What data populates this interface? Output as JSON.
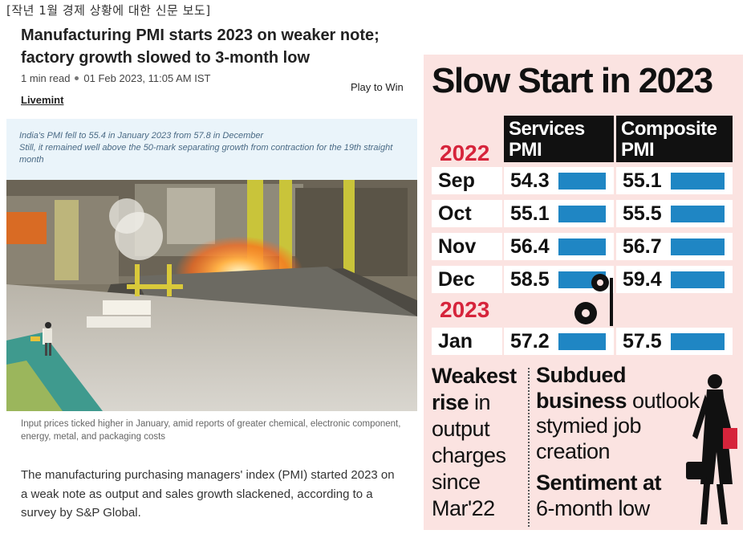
{
  "top_caption": "[작년 1월 경제 상황에 대한 신문 보도]",
  "article": {
    "headline": "Manufacturing PMI starts 2023 on weaker note; factory growth slowed to 3-month low",
    "read_time": "1 min read",
    "datetime": "01 Feb 2023, 11:05 AM IST",
    "play_label": "Play to Win",
    "source": "Livemint",
    "summary_1": "India's PMI fell to 55.4 in January 2023 from 57.8 in December",
    "summary_2": "Still, it remained well above the 50-mark separating growth from contraction for the 19th straight month",
    "photo_caption": "Input prices ticked higher in January, amid reports of greater chemical, electronic component, energy, metal, and packaging costs",
    "body": "The manufacturing purchasing managers' index (PMI) started 2023 on a weak note as output and sales growth slackened, according to a survey by S&P Global."
  },
  "infographic": {
    "title": "Slow Start in 2023",
    "col_services": "Services PMI",
    "col_composite": "Composite PMI",
    "year_2022": "2022",
    "year_2023": "2023",
    "bar_color": "#1f86c4",
    "rows": [
      {
        "month": "Sep",
        "services": "54.3",
        "composite": "55.1"
      },
      {
        "month": "Oct",
        "services": "55.1",
        "composite": "55.5"
      },
      {
        "month": "Nov",
        "services": "56.4",
        "composite": "56.7"
      },
      {
        "month": "Dec",
        "services": "58.5",
        "composite": "59.4"
      },
      {
        "month": "Jan",
        "services": "57.2",
        "composite": "57.5"
      }
    ],
    "left_bold_1": "Weakest",
    "left_bold_2": "rise",
    "left_rest_1": " in",
    "left_rest_2": "output charges since Mar'22",
    "right_bold_1": "Subdued business",
    "right_rest_1": " outlook stymied job creation",
    "right_bold_2": "Sentiment at",
    "right_rest_2": "6-month low"
  }
}
